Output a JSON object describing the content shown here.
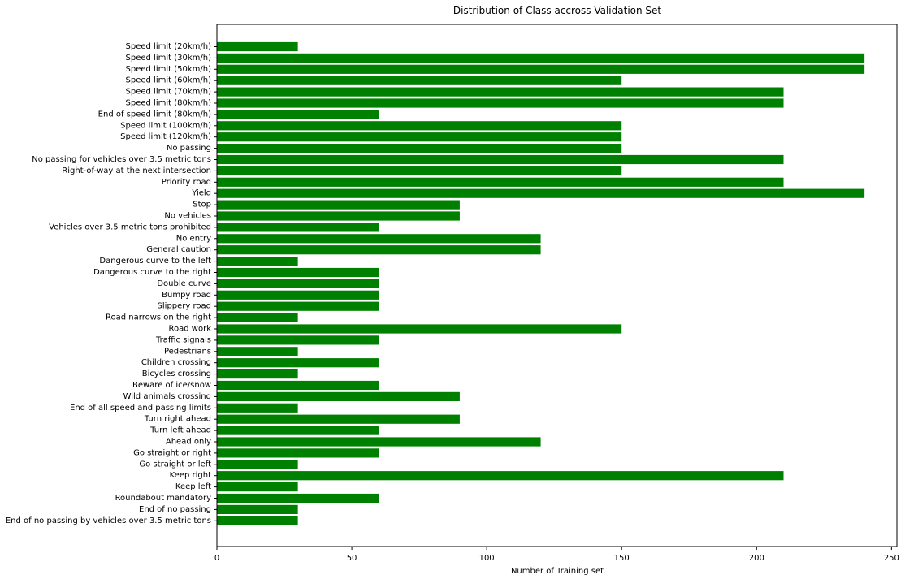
{
  "chart_data": {
    "type": "bar",
    "orientation": "horizontal",
    "title": "Distribution of Class accross Validation Set",
    "xlabel": "Number of Training set",
    "ylabel": "",
    "xlim": [
      0,
      252
    ],
    "xticks": [
      0,
      50,
      100,
      150,
      200,
      250
    ],
    "grid": false,
    "bar_color": "#008000",
    "categories": [
      "Speed limit (20km/h)",
      "Speed limit (30km/h)",
      "Speed limit (50km/h)",
      "Speed limit (60km/h)",
      "Speed limit (70km/h)",
      "Speed limit (80km/h)",
      "End of speed limit (80km/h)",
      "Speed limit (100km/h)",
      "Speed limit (120km/h)",
      "No passing",
      "No passing for vehicles over 3.5 metric tons",
      "Right-of-way at the next intersection",
      "Priority road",
      "Yield",
      "Stop",
      "No vehicles",
      "Vehicles over 3.5 metric tons prohibited",
      "No entry",
      "General caution",
      "Dangerous curve to the left",
      "Dangerous curve to the right",
      "Double curve",
      "Bumpy road",
      "Slippery road",
      "Road narrows on the right",
      "Road work",
      "Traffic signals",
      "Pedestrians",
      "Children crossing",
      "Bicycles crossing",
      "Beware of ice/snow",
      "Wild animals crossing",
      "End of all speed and passing limits",
      "Turn right ahead",
      "Turn left ahead",
      "Ahead only",
      "Go straight or right",
      "Go straight or left",
      "Keep right",
      "Keep left",
      "Roundabout mandatory",
      "End of no passing",
      "End of no passing by vehicles over 3.5 metric tons"
    ],
    "values": [
      30,
      240,
      240,
      150,
      210,
      210,
      60,
      150,
      150,
      150,
      210,
      150,
      210,
      240,
      90,
      90,
      60,
      120,
      120,
      30,
      60,
      60,
      60,
      60,
      30,
      150,
      60,
      30,
      60,
      30,
      60,
      90,
      30,
      90,
      60,
      120,
      60,
      30,
      210,
      30,
      60,
      30,
      30
    ]
  }
}
